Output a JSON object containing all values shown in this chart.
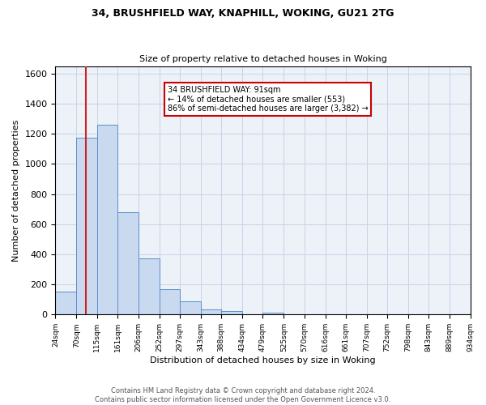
{
  "title1": "34, BRUSHFIELD WAY, KNAPHILL, WOKING, GU21 2TG",
  "title2": "Size of property relative to detached houses in Woking",
  "xlabel": "Distribution of detached houses by size in Woking",
  "ylabel": "Number of detached properties",
  "annotation_line1": "34 BRUSHFIELD WAY: 91sqm",
  "annotation_line2": "← 14% of detached houses are smaller (553)",
  "annotation_line3": "86% of semi-detached houses are larger (3,382) →",
  "property_size": 91,
  "bin_edges": [
    24,
    70,
    115,
    161,
    206,
    252,
    297,
    343,
    388,
    434,
    479,
    525,
    570,
    616,
    661,
    707,
    752,
    798,
    843,
    889,
    934
  ],
  "bin_heights": [
    150,
    1175,
    1260,
    680,
    375,
    170,
    90,
    35,
    22,
    0,
    15,
    0,
    0,
    0,
    0,
    0,
    0,
    0,
    0,
    0
  ],
  "bar_color": "#c9d9f0",
  "bar_edge_color": "#5b8fc9",
  "red_line_color": "#cc2222",
  "grid_color": "#c8d4e8",
  "background_color": "#edf1f8",
  "annotation_box_color": "#ffffff",
  "annotation_box_edge": "#cc0000",
  "footer_text": "Contains HM Land Registry data © Crown copyright and database right 2024.\nContains public sector information licensed under the Open Government Licence v3.0.",
  "ylim": [
    0,
    1650
  ],
  "yticks": [
    0,
    200,
    400,
    600,
    800,
    1000,
    1200,
    1400,
    1600
  ]
}
